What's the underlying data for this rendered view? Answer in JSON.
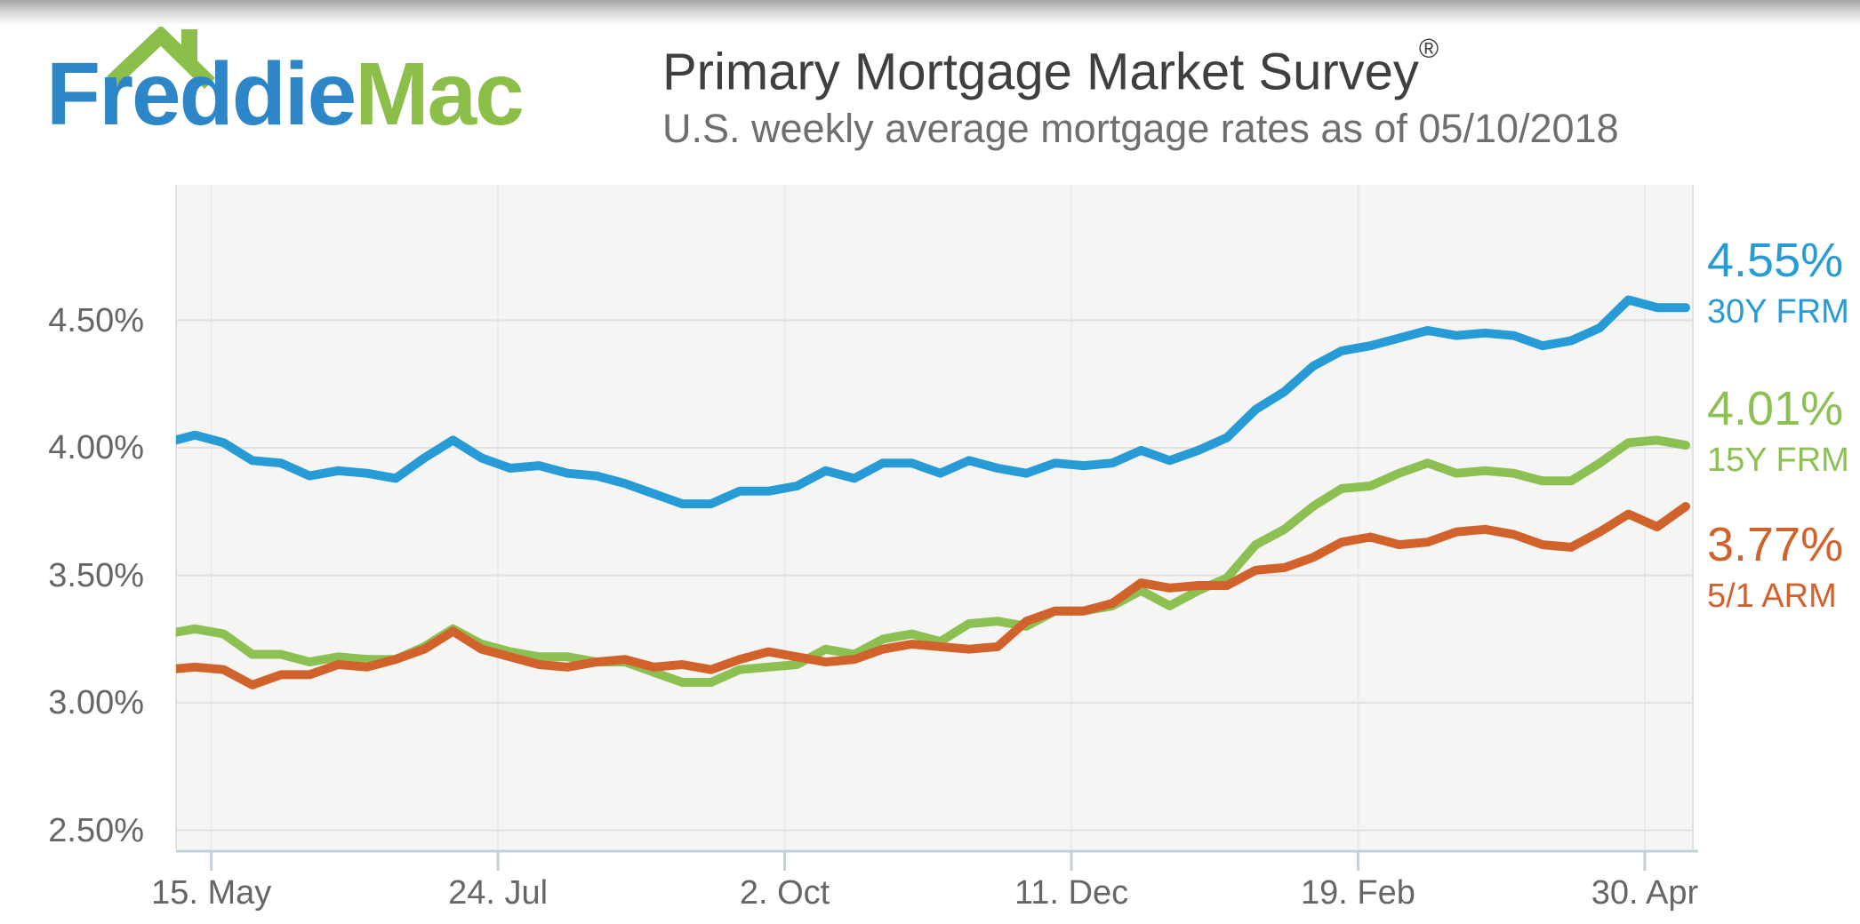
{
  "page": {
    "background": "#FFFFFF"
  },
  "logo": {
    "freddie": "Freddie",
    "mac": "Mac",
    "freddie_color": "#2C86C8",
    "mac_color": "#8CBE4A",
    "roof_color": "#8CBE4A"
  },
  "header": {
    "title": "Primary Mortgage Market Survey",
    "registered_mark": "®",
    "subtitle": "U.S. weekly average mortgage rates as of 05/10/2018",
    "title_color": "#3F3F3F",
    "subtitle_color": "#6E6E6E"
  },
  "chart_data": {
    "type": "line",
    "frequency": "weekly",
    "legend_position": "right",
    "grid": true,
    "plot_background": "#F5F5F3",
    "grid_color": "#E1E1DF",
    "minor_grid_color": "#EAEAE8",
    "axis_line_color": "#C2D1D8",
    "axis_label_color": "#666666",
    "ylim": [
      2.42,
      5.03
    ],
    "y_axis": {
      "ticks": [
        {
          "label": "4.50%",
          "value": 4.5
        },
        {
          "label": "4.00%",
          "value": 4.0
        },
        {
          "label": "3.50%",
          "value": 3.5
        },
        {
          "label": "3.00%",
          "value": 3.0
        },
        {
          "label": "2.50%",
          "value": 2.5
        }
      ]
    },
    "x_axis": {
      "span_days": 371,
      "ticks": [
        {
          "label": "15. May",
          "day": 11
        },
        {
          "label": "24. Jul",
          "day": 81
        },
        {
          "label": "2. Oct",
          "day": 151
        },
        {
          "label": "11. Dec",
          "day": 221
        },
        {
          "label": "19. Feb",
          "day": 291
        },
        {
          "label": "30. Apr",
          "day": 361
        }
      ]
    },
    "series": [
      {
        "id": "30y-frm",
        "name": "30Y FRM",
        "current_value_label": "4.55%",
        "color": "#269BD5",
        "values": [
          4.02,
          4.05,
          4.02,
          3.95,
          3.94,
          3.89,
          3.91,
          3.9,
          3.88,
          3.96,
          4.03,
          3.96,
          3.92,
          3.93,
          3.9,
          3.89,
          3.86,
          3.82,
          3.78,
          3.78,
          3.83,
          3.83,
          3.85,
          3.91,
          3.88,
          3.94,
          3.94,
          3.9,
          3.95,
          3.92,
          3.9,
          3.94,
          3.93,
          3.94,
          3.99,
          3.95,
          3.99,
          4.04,
          4.15,
          4.22,
          4.32,
          4.38,
          4.4,
          4.43,
          4.46,
          4.44,
          4.45,
          4.44,
          4.4,
          4.42,
          4.47,
          4.58,
          4.55,
          4.55
        ]
      },
      {
        "id": "15y-frm",
        "name": "15Y FRM",
        "current_value_label": "4.01%",
        "color": "#8DC053",
        "values": [
          3.27,
          3.29,
          3.27,
          3.19,
          3.19,
          3.16,
          3.18,
          3.17,
          3.17,
          3.22,
          3.29,
          3.23,
          3.2,
          3.18,
          3.18,
          3.16,
          3.16,
          3.12,
          3.08,
          3.08,
          3.13,
          3.14,
          3.15,
          3.21,
          3.19,
          3.25,
          3.27,
          3.24,
          3.31,
          3.32,
          3.3,
          3.36,
          3.36,
          3.38,
          3.44,
          3.38,
          3.44,
          3.49,
          3.62,
          3.68,
          3.77,
          3.84,
          3.85,
          3.9,
          3.94,
          3.9,
          3.91,
          3.9,
          3.87,
          3.87,
          3.94,
          4.02,
          4.03,
          4.01
        ]
      },
      {
        "id": "5-1-arm",
        "name": "5/1 ARM",
        "current_value_label": "3.77%",
        "color": "#D2622B",
        "values": [
          3.13,
          3.14,
          3.13,
          3.07,
          3.11,
          3.11,
          3.15,
          3.14,
          3.17,
          3.21,
          3.28,
          3.21,
          3.18,
          3.15,
          3.14,
          3.16,
          3.17,
          3.14,
          3.15,
          3.13,
          3.17,
          3.2,
          3.18,
          3.16,
          3.17,
          3.21,
          3.23,
          3.22,
          3.21,
          3.22,
          3.32,
          3.36,
          3.36,
          3.39,
          3.47,
          3.45,
          3.46,
          3.46,
          3.52,
          3.53,
          3.57,
          3.63,
          3.65,
          3.62,
          3.63,
          3.67,
          3.68,
          3.66,
          3.62,
          3.61,
          3.67,
          3.74,
          3.69,
          3.77
        ]
      }
    ]
  }
}
